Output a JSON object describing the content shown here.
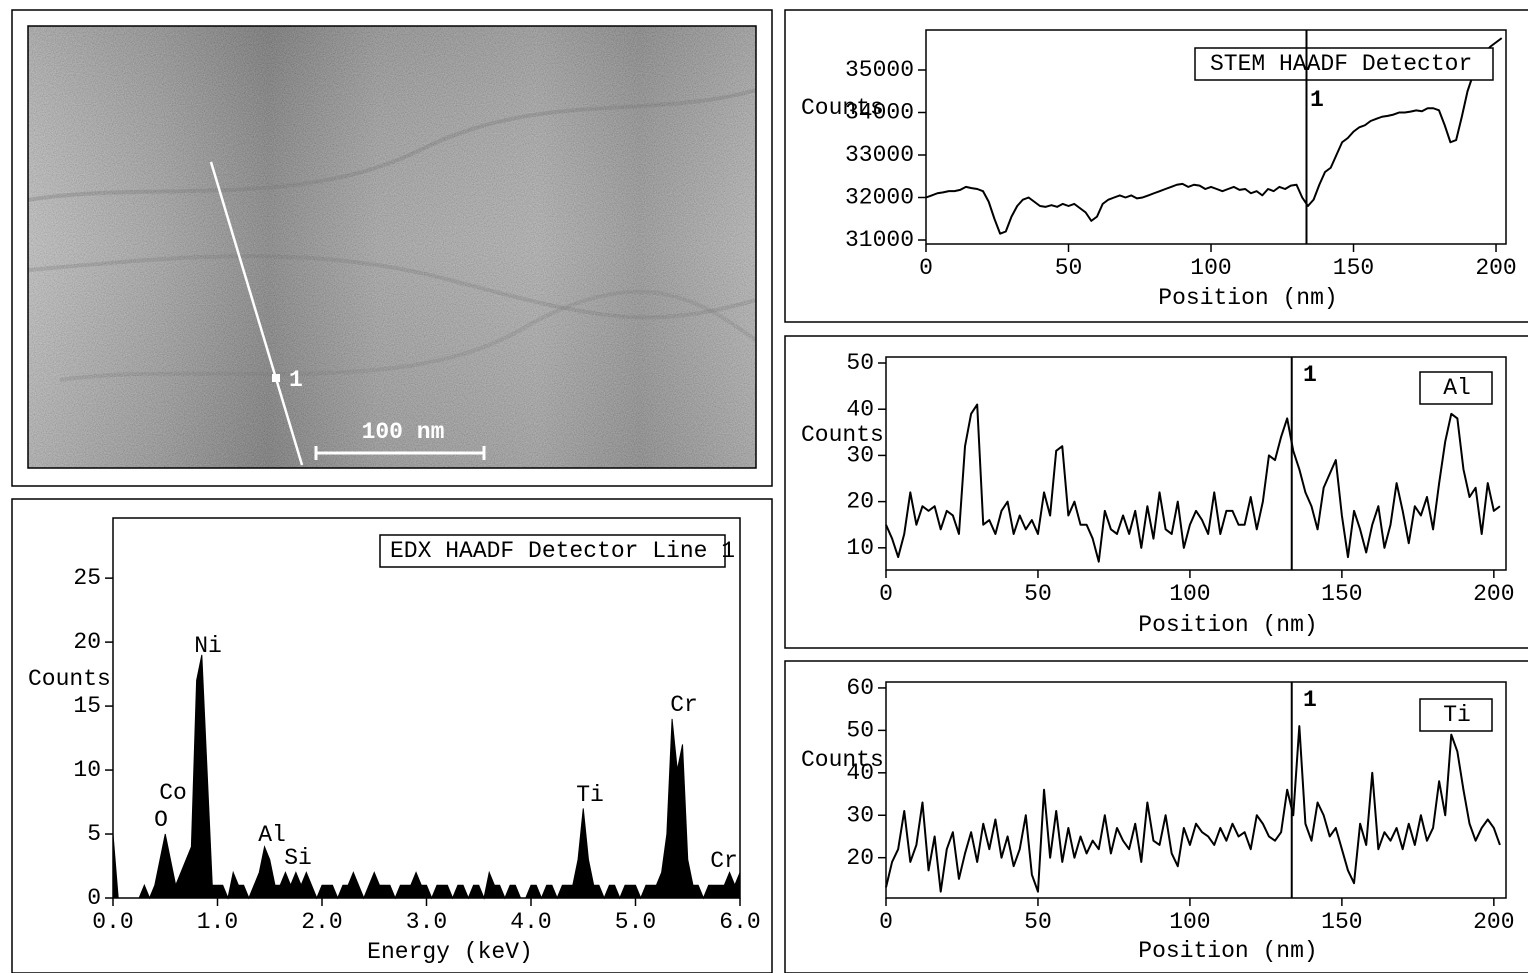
{
  "image": {
    "marker_label": "1",
    "scale_bar_label": "100 nm"
  },
  "chart_data": [
    {
      "type": "area",
      "title": "EDX HAADF Detector Line 1",
      "x_label": "Energy (keV)",
      "y_label": "Counts",
      "color": "#000000",
      "annotations": [
        "O",
        "Co",
        "Ni",
        "Al",
        "Si",
        "Ti",
        "Cr",
        "Cr"
      ],
      "x": [
        0,
        0.05,
        0.1,
        0.15,
        0.2,
        0.25,
        0.3,
        0.35,
        0.4,
        0.45,
        0.5,
        0.55,
        0.6,
        0.65,
        0.7,
        0.75,
        0.8,
        0.85,
        0.9,
        0.95,
        1,
        1.05,
        1.1,
        1.15,
        1.2,
        1.25,
        1.3,
        1.35,
        1.4,
        1.45,
        1.5,
        1.55,
        1.6,
        1.65,
        1.7,
        1.75,
        1.8,
        1.85,
        1.9,
        1.95,
        2,
        2.05,
        2.1,
        2.15,
        2.2,
        2.25,
        2.3,
        2.35,
        2.4,
        2.45,
        2.5,
        2.55,
        2.6,
        2.65,
        2.7,
        2.75,
        2.8,
        2.85,
        2.9,
        2.95,
        3,
        3.05,
        3.1,
        3.15,
        3.2,
        3.25,
        3.3,
        3.35,
        3.4,
        3.45,
        3.5,
        3.55,
        3.6,
        3.65,
        3.7,
        3.75,
        3.8,
        3.85,
        3.9,
        3.95,
        4,
        4.05,
        4.1,
        4.15,
        4.2,
        4.25,
        4.3,
        4.35,
        4.4,
        4.45,
        4.5,
        4.55,
        4.6,
        4.65,
        4.7,
        4.75,
        4.8,
        4.85,
        4.9,
        4.95,
        5,
        5.05,
        5.1,
        5.15,
        5.2,
        5.25,
        5.3,
        5.35,
        5.4,
        5.45,
        5.5,
        5.55,
        5.6,
        5.65,
        5.7,
        5.75,
        5.8,
        5.85,
        5.9,
        5.95,
        6
      ],
      "values": [
        5,
        0,
        0,
        0,
        0,
        0,
        1,
        0,
        1,
        3,
        5,
        3,
        1,
        2,
        3,
        4,
        17,
        19,
        10,
        1,
        1,
        1,
        0,
        2,
        1,
        1,
        0,
        1,
        2,
        4,
        3,
        1,
        1,
        2,
        1,
        2,
        1,
        2,
        1,
        0,
        1,
        1,
        1,
        0,
        1,
        1,
        2,
        1,
        0,
        1,
        2,
        1,
        1,
        1,
        0,
        1,
        1,
        1,
        2,
        1,
        1,
        0,
        1,
        1,
        1,
        0,
        1,
        1,
        0,
        1,
        1,
        0,
        2,
        1,
        1,
        0,
        1,
        1,
        0,
        0,
        1,
        1,
        0,
        1,
        1,
        0,
        1,
        1,
        1,
        3,
        7,
        3,
        1,
        1,
        0,
        1,
        1,
        0,
        1,
        1,
        1,
        0,
        1,
        1,
        1,
        2,
        5,
        14,
        10,
        12,
        3,
        1,
        1,
        0,
        1,
        1,
        1,
        1,
        2,
        1,
        2
      ],
      "xlim": [
        0,
        6
      ],
      "ylim": [
        0,
        29.7
      ],
      "xticks": [
        {
          "value": 0,
          "label": "0.0"
        },
        {
          "value": 1,
          "label": "1.0"
        },
        {
          "value": 2,
          "label": "2.0"
        },
        {
          "value": 3,
          "label": "3.0"
        },
        {
          "value": 4,
          "label": "4.0"
        },
        {
          "value": 5,
          "label": "5.0"
        },
        {
          "value": 6,
          "label": "6.0"
        }
      ],
      "yticks": [
        0,
        5,
        10,
        15,
        20,
        25
      ]
    },
    {
      "type": "line",
      "x_label": "Position (nm)",
      "y_label": "Counts",
      "x": [
        0,
        2,
        4,
        6,
        8,
        10,
        12,
        14,
        16,
        18,
        20,
        22,
        24,
        26,
        28,
        30,
        32,
        34,
        36,
        38,
        40,
        42,
        44,
        46,
        48,
        50,
        52,
        54,
        56,
        58,
        60,
        62,
        64,
        66,
        68,
        70,
        72,
        74,
        76,
        78,
        80,
        82,
        84,
        86,
        88,
        90,
        92,
        94,
        96,
        98,
        100,
        102,
        104,
        106,
        108,
        110,
        112,
        114,
        116,
        118,
        120,
        122,
        124,
        126,
        128,
        130,
        132,
        134,
        136,
        138,
        140,
        142,
        144,
        146,
        148,
        150,
        152,
        154,
        156,
        158,
        160,
        162,
        164,
        166,
        168,
        170,
        172,
        174,
        176,
        178,
        180,
        182,
        184,
        186,
        188,
        190,
        192,
        194,
        196,
        198,
        200,
        202
      ],
      "series": [
        {
          "name": "STEM HAADF Detector",
          "color": "#000000",
          "values": [
            32000,
            32050,
            32100,
            32120,
            32150,
            32150,
            32180,
            32250,
            32220,
            32200,
            32150,
            31900,
            31500,
            31150,
            31200,
            31550,
            31800,
            31950,
            32000,
            31900,
            31800,
            31780,
            31820,
            31780,
            31850,
            31800,
            31850,
            31750,
            31650,
            31450,
            31550,
            31850,
            31950,
            32000,
            32050,
            32000,
            32050,
            31980,
            32000,
            32050,
            32100,
            32150,
            32200,
            32250,
            32300,
            32320,
            32250,
            32300,
            32280,
            32200,
            32250,
            32200,
            32150,
            32200,
            32250,
            32180,
            32200,
            32100,
            32150,
            32050,
            32200,
            32150,
            32250,
            32200,
            32280,
            32300,
            32000,
            31800,
            31950,
            32300,
            32600,
            32700,
            33000,
            33300,
            33400,
            33550,
            33650,
            33700,
            33800,
            33850,
            33900,
            33920,
            33950,
            34000,
            34000,
            34020,
            34050,
            34030,
            34100,
            34100,
            34050,
            33700,
            33300,
            33350,
            33900,
            34500,
            34900,
            35200,
            35400,
            35550,
            35650,
            35750
          ]
        }
      ],
      "cursor": {
        "x": 133.5,
        "label": "1"
      },
      "xlim": [
        0,
        203.5
      ],
      "ylim": [
        30906,
        35941
      ],
      "xticks": [
        0,
        50,
        100,
        150,
        200
      ],
      "yticks": [
        31000,
        32000,
        33000,
        34000,
        35000
      ]
    },
    {
      "type": "line",
      "x_label": "Position (nm)",
      "y_label": "Counts",
      "x": [
        0,
        2,
        4,
        6,
        8,
        10,
        12,
        14,
        16,
        18,
        20,
        22,
        24,
        26,
        28,
        30,
        32,
        34,
        36,
        38,
        40,
        42,
        44,
        46,
        48,
        50,
        52,
        54,
        56,
        58,
        60,
        62,
        64,
        66,
        68,
        70,
        72,
        74,
        76,
        78,
        80,
        82,
        84,
        86,
        88,
        90,
        92,
        94,
        96,
        98,
        100,
        102,
        104,
        106,
        108,
        110,
        112,
        114,
        116,
        118,
        120,
        122,
        124,
        126,
        128,
        130,
        132,
        134,
        136,
        138,
        140,
        142,
        144,
        146,
        148,
        150,
        152,
        154,
        156,
        158,
        160,
        162,
        164,
        166,
        168,
        170,
        172,
        174,
        176,
        178,
        180,
        182,
        184,
        186,
        188,
        190,
        192,
        194,
        196,
        198,
        200,
        202
      ],
      "series": [
        {
          "name": "Al",
          "color": "#000000",
          "values": [
            15,
            12,
            8,
            13,
            22,
            15,
            19,
            18,
            19,
            14,
            18,
            17,
            13,
            32,
            39,
            41,
            15,
            16,
            13,
            18,
            20,
            13,
            17,
            14,
            16,
            13,
            22,
            17,
            31,
            32,
            17,
            20,
            15,
            15,
            12,
            7,
            18,
            14,
            13,
            17,
            13,
            18,
            10,
            19,
            12,
            22,
            14,
            13,
            20,
            10,
            15,
            18,
            16,
            13,
            22,
            13,
            18,
            18,
            15,
            15,
            21,
            14,
            20,
            30,
            29,
            34,
            38,
            31,
            27,
            22,
            19,
            14,
            23,
            26,
            29,
            17,
            8,
            18,
            14,
            9,
            15,
            19,
            10,
            15,
            24,
            18,
            11,
            19,
            17,
            21,
            14,
            24,
            33,
            39,
            38,
            27,
            21,
            23,
            13,
            24,
            18,
            19
          ]
        }
      ],
      "cursor": {
        "x": 133.5,
        "label": "1"
      },
      "xlim": [
        0,
        204
      ],
      "ylim": [
        5.2,
        51.3
      ],
      "xticks": [
        0,
        50,
        100,
        150,
        200
      ],
      "yticks": [
        10,
        20,
        30,
        40,
        50
      ]
    },
    {
      "type": "line",
      "x_label": "Position (nm)",
      "y_label": "Counts",
      "x": [
        0,
        2,
        4,
        6,
        8,
        10,
        12,
        14,
        16,
        18,
        20,
        22,
        24,
        26,
        28,
        30,
        32,
        34,
        36,
        38,
        40,
        42,
        44,
        46,
        48,
        50,
        52,
        54,
        56,
        58,
        60,
        62,
        64,
        66,
        68,
        70,
        72,
        74,
        76,
        78,
        80,
        82,
        84,
        86,
        88,
        90,
        92,
        94,
        96,
        98,
        100,
        102,
        104,
        106,
        108,
        110,
        112,
        114,
        116,
        118,
        120,
        122,
        124,
        126,
        128,
        130,
        132,
        134,
        136,
        138,
        140,
        142,
        144,
        146,
        148,
        150,
        152,
        154,
        156,
        158,
        160,
        162,
        164,
        166,
        168,
        170,
        172,
        174,
        176,
        178,
        180,
        182,
        184,
        186,
        188,
        190,
        192,
        194,
        196,
        198,
        200,
        202
      ],
      "series": [
        {
          "name": "Ti",
          "color": "#000000",
          "values": [
            13,
            19,
            22,
            31,
            19,
            23,
            33,
            17,
            25,
            12,
            22,
            26,
            15,
            21,
            26,
            19,
            28,
            22,
            29,
            20,
            25,
            18,
            22,
            30,
            16,
            12,
            36,
            20,
            31,
            19,
            27,
            20,
            25,
            21,
            24,
            22,
            30,
            21,
            27,
            24,
            22,
            28,
            19,
            33,
            24,
            23,
            30,
            21,
            18,
            27,
            23,
            28,
            26,
            25,
            23,
            27,
            24,
            28,
            25,
            26,
            22,
            30,
            28,
            25,
            24,
            26,
            36,
            30,
            51,
            28,
            24,
            33,
            30,
            25,
            27,
            22,
            17,
            14,
            28,
            23,
            40,
            22,
            26,
            24,
            27,
            22,
            28,
            23,
            30,
            24,
            27,
            38,
            30,
            49,
            45,
            36,
            28,
            24,
            27,
            29,
            27,
            23
          ]
        }
      ],
      "cursor": {
        "x": 133.5,
        "label": "1"
      },
      "xlim": [
        0,
        204
      ],
      "ylim": [
        10.5,
        61.4
      ],
      "xticks": [
        0,
        50,
        100,
        150,
        200
      ],
      "yticks": [
        20,
        30,
        40,
        50,
        60
      ]
    }
  ]
}
